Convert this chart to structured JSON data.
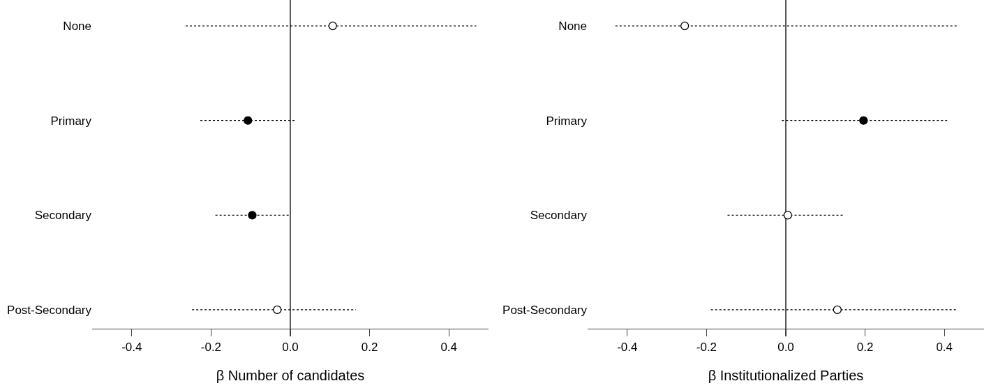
{
  "chart_data": [
    {
      "type": "scatter",
      "orientation": "horizontal",
      "xlabel": "β Number of candidates",
      "categories": [
        "None",
        "Primary",
        "Secondary",
        "Post-Secondary"
      ],
      "values": [
        0.107,
        -0.107,
        -0.096,
        -0.033
      ],
      "colors": [
        "#ffffff",
        "#000000",
        "#000000",
        "#ffffff"
      ],
      "errors": [
        [
          -0.264,
          0.469
        ],
        [
          -0.227,
          0.013
        ],
        [
          -0.189,
          -0.003
        ],
        [
          -0.248,
          0.165
        ]
      ],
      "xlim": [
        -0.5,
        0.5
      ],
      "xticks": [
        {
          "value": -0.4,
          "label": "-0.4"
        },
        {
          "value": -0.2,
          "label": "-0.2"
        },
        {
          "value": 0,
          "label": "0.0"
        },
        {
          "value": 0.2,
          "label": "0.2"
        },
        {
          "value": 0.4,
          "label": "0.4"
        }
      ],
      "ref_lines": [
        {
          "axis": "x",
          "value": 0,
          "color": "#000000"
        }
      ],
      "marker": "circle"
    },
    {
      "type": "scatter",
      "orientation": "horizontal",
      "xlabel": "β Institutionalized Parties",
      "categories": [
        "None",
        "Primary",
        "Secondary",
        "Post-Secondary"
      ],
      "values": [
        -0.255,
        0.196,
        0.005,
        0.13
      ],
      "colors": [
        "#ffffff",
        "#000000",
        "#ffffff",
        "#ffffff"
      ],
      "errors": [
        [
          -0.43,
          0.433
        ],
        [
          -0.01,
          0.407
        ],
        [
          -0.147,
          0.149
        ],
        [
          -0.189,
          0.43
        ]
      ],
      "xlim": [
        -0.5,
        0.5
      ],
      "xticks": [
        {
          "value": -0.4,
          "label": "-0.4"
        },
        {
          "value": -0.2,
          "label": "-0.2"
        },
        {
          "value": 0,
          "label": "0.0"
        },
        {
          "value": 0.2,
          "label": "0.2"
        },
        {
          "value": 0.4,
          "label": "0.4"
        }
      ],
      "ref_lines": [
        {
          "axis": "x",
          "value": 0,
          "color": "#000000"
        }
      ],
      "marker": "circle"
    }
  ]
}
